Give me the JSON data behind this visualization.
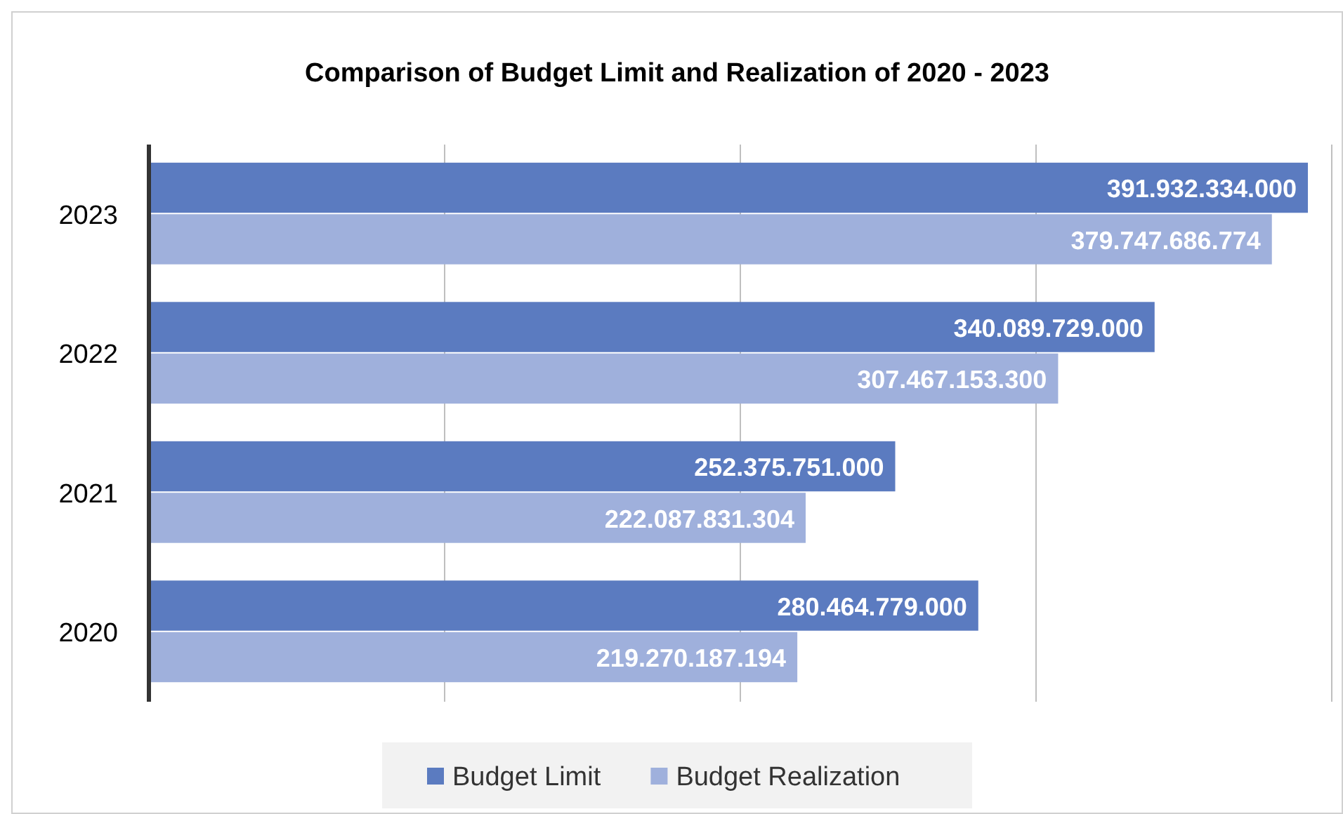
{
  "chart_data": {
    "type": "bar",
    "orientation": "horizontal",
    "title": "Comparison of Budget Limit and Realization of 2020 - 2023",
    "categories": [
      "2023",
      "2022",
      "2021",
      "2020"
    ],
    "series": [
      {
        "name": "Budget Limit",
        "color": "#5b7bc0",
        "values": [
          391932334000,
          340089729000,
          252375751000,
          280464779000
        ],
        "value_labels": [
          "391.932.334.000",
          "340.089.729.000",
          "252.375.751.000",
          "280.464.779.000"
        ]
      },
      {
        "name": "Budget Realization",
        "color": "#9fb0dc",
        "values": [
          379747686774,
          307467153300,
          222087831304,
          219270187194
        ],
        "value_labels": [
          "379.747.686.774",
          "307.467.153.300",
          "222.087.831.304",
          "219.270.187.194"
        ]
      }
    ],
    "xlim": [
      0,
      400000000000
    ],
    "xticks": [
      {
        "value": 0,
        "label": null
      },
      {
        "value": 100000000000,
        "label": null
      },
      {
        "value": 200000000000,
        "label": null
      },
      {
        "value": 300000000000,
        "label": null
      },
      {
        "value": 400000000000,
        "label": null
      }
    ],
    "grid": "x",
    "tick_labels": "y",
    "legend": "bottom"
  }
}
